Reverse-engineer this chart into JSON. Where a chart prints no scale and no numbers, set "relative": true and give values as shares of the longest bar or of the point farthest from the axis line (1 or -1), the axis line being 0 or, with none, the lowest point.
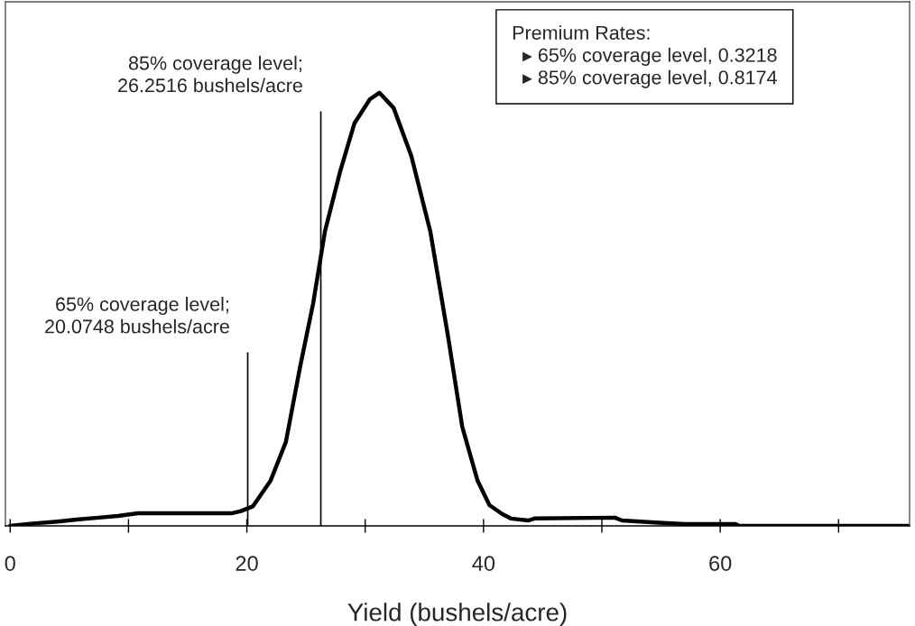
{
  "chart_data": {
    "type": "line",
    "relative": true,
    "xlabel": "Yield (bushels/acre)",
    "x": [
      0,
      1.7,
      4.0,
      5.8,
      7.5,
      9.1,
      10.8,
      18.7,
      19.5,
      20.5,
      22.0,
      23.3,
      24.5,
      25.6,
      26.6,
      27.9,
      29.1,
      30.4,
      31.2,
      32.4,
      33.9,
      35.5,
      37.0,
      38.2,
      39.5,
      40.5,
      41.6,
      42.3,
      43.8,
      44.3,
      51.1,
      51.7,
      54.5,
      57.0,
      61.3,
      61.6,
      76.0
    ],
    "series": [
      {
        "color": "#000000",
        "values": [
          0,
          0.005,
          0.01,
          0.015,
          0.019,
          0.023,
          0.029,
          0.029,
          0.034,
          0.045,
          0.104,
          0.194,
          0.367,
          0.513,
          0.68,
          0.82,
          0.93,
          0.985,
          1,
          0.965,
          0.854,
          0.68,
          0.4375,
          0.229,
          0.104,
          0.048,
          0.027,
          0.017,
          0.0125,
          0.017,
          0.019,
          0.0125,
          0.008,
          0.004,
          0.004,
          0,
          0
        ]
      }
    ],
    "xlim": [
      -0.4,
      76
    ],
    "xticks": [
      0,
      {
        "value": 10,
        "label": null
      },
      20,
      {
        "value": 30,
        "label": null
      },
      40,
      {
        "value": 50,
        "label": null
      },
      60,
      {
        "value": 70,
        "label": null
      }
    ],
    "tick_labels": "x",
    "marker": "none",
    "line_style": "solid",
    "ref_lines": [
      {
        "axis": "x",
        "value": 20.0748,
        "label": "65% coverage level;\n20.0748 bushels/acre",
        "color": "#000000"
      },
      {
        "axis": "x",
        "value": 26.2516,
        "label": "85% coverage level;\n26.2516 bushels/acre",
        "color": "#000000"
      }
    ],
    "annotations": [
      "Premium Rates:\n  ▸ 65% coverage level, 0.3218\n  ▸ 85% coverage level, 0.8174"
    ]
  }
}
